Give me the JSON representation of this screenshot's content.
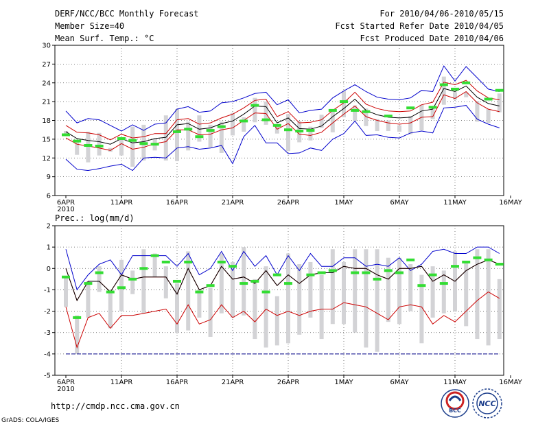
{
  "header": {
    "title": "DERF/NCC/BCC Monthly Forecast",
    "member_size": "Member Size=40",
    "variable": "Mean Surf. Temp.: °C",
    "period": "For 2010/04/06-2010/05/15",
    "started": "Fcst Started Refer Date 2010/04/05",
    "produced": "Fcst Produced Date 2010/04/06"
  },
  "footer": {
    "url": "http://cmdp.ncc.cma.gov.cn",
    "grads": "GrADS: COLA/IGES",
    "logo_bcc": "BCC",
    "logo_ncc": "NCC"
  },
  "x_labels": [
    "6APR",
    "11APR",
    "16APR",
    "21APR",
    "26APR",
    "1MAY",
    "6MAY",
    "11MAY",
    "16MAY"
  ],
  "x_year": "2010",
  "colors": {
    "max_min": "#0000cc",
    "quantile": "#cc0000",
    "mean": "#000000",
    "obs": "#33dd33",
    "box": "#d3d3d6",
    "baseline": "#000088"
  },
  "chart_data": [
    {
      "type": "line",
      "title": "Mean Surf. Temp.: °C",
      "ylim": [
        6,
        30
      ],
      "yticks": [
        6,
        9,
        12,
        15,
        18,
        21,
        24,
        27,
        30
      ],
      "ytick_labels": [
        "6",
        "9",
        "12",
        "15",
        "18",
        "21",
        "24",
        "27",
        "30"
      ],
      "x_days": 40,
      "series": [
        {
          "name": "max",
          "values": [
            19.5,
            17.6,
            18.3,
            18.1,
            17.2,
            16.3,
            17.3,
            16.4,
            17.4,
            17.6,
            19.8,
            20.2,
            19.3,
            19.5,
            20.8,
            21.0,
            21.6,
            22.3,
            22.5,
            20.5,
            21.3,
            19.2,
            19.6,
            19.8,
            21.6,
            22.7,
            23.7,
            22.6,
            21.7,
            21.4,
            21.3,
            21.6,
            22.8,
            22.6,
            26.7,
            24.3,
            26.6,
            24.8,
            23.0,
            22.6
          ]
        },
        {
          "name": "q_high",
          "values": [
            17.2,
            16.1,
            16.0,
            15.7,
            14.9,
            15.8,
            15.2,
            15.4,
            15.9,
            15.9,
            18.1,
            18.3,
            17.4,
            17.6,
            18.4,
            19.0,
            20.0,
            21.2,
            21.4,
            18.6,
            19.4,
            17.6,
            17.7,
            18.1,
            19.6,
            20.8,
            22.5,
            20.6,
            19.9,
            19.5,
            19.4,
            19.5,
            20.5,
            20.9,
            24.1,
            23.7,
            24.4,
            22.7,
            21.6,
            21.3
          ]
        },
        {
          "name": "mean",
          "values": [
            16.2,
            15.1,
            14.8,
            14.6,
            14.2,
            15.1,
            14.4,
            14.6,
            15.1,
            15.3,
            17.3,
            17.5,
            16.6,
            16.8,
            17.5,
            17.9,
            19.0,
            20.3,
            20.2,
            17.6,
            18.4,
            16.7,
            16.6,
            17.1,
            18.6,
            19.9,
            21.4,
            19.6,
            18.9,
            18.5,
            18.4,
            18.5,
            19.5,
            19.8,
            23.1,
            22.6,
            23.5,
            21.7,
            20.7,
            20.3
          ]
        },
        {
          "name": "q_low",
          "values": [
            15.2,
            14.2,
            13.9,
            13.6,
            13.2,
            14.3,
            13.4,
            13.7,
            14.3,
            14.6,
            16.5,
            16.5,
            15.7,
            15.8,
            16.5,
            16.8,
            18.0,
            19.2,
            19.1,
            16.6,
            17.5,
            15.8,
            15.6,
            16.1,
            17.6,
            19.0,
            20.3,
            18.6,
            18.0,
            17.6,
            17.4,
            17.6,
            18.5,
            18.6,
            22.1,
            21.5,
            22.6,
            20.8,
            19.8,
            19.4
          ]
        },
        {
          "name": "min",
          "values": [
            11.8,
            10.2,
            10.0,
            10.3,
            10.7,
            11.0,
            10.0,
            12.0,
            12.1,
            12.0,
            13.6,
            13.8,
            13.4,
            13.6,
            14.0,
            11.1,
            15.4,
            17.2,
            14.4,
            14.4,
            12.7,
            12.8,
            13.6,
            13.2,
            15.0,
            15.9,
            17.9,
            15.6,
            15.7,
            15.3,
            15.2,
            16.0,
            16.3,
            16.0,
            20.0,
            20.1,
            20.4,
            18.2,
            17.4,
            16.8
          ]
        },
        {
          "name": "box_high",
          "values": [
            16.3,
            14.5,
            16.2,
            16.0,
            13.6,
            15.3,
            17.0,
            17.3,
            15.0,
            18.8,
            19.8,
            17.8,
            18.8,
            17.3,
            17.8,
            19.2,
            18.5,
            21.6,
            21.0,
            17.3,
            19.0,
            17.9,
            17.0,
            18.9,
            19.4,
            22.7,
            20.4,
            19.9,
            18.2,
            18.0,
            17.2,
            18.7,
            20.5,
            20.1,
            25.0,
            22.5,
            22.5,
            21.1,
            19.8,
            22.3
          ]
        },
        {
          "name": "box_low",
          "values": [
            15.6,
            12.5,
            11.3,
            12.4,
            13.0,
            12.4,
            10.6,
            11.6,
            13.2,
            11.6,
            11.5,
            13.2,
            14.6,
            13.7,
            12.8,
            15.6,
            16.2,
            17.7,
            17.3,
            15.9,
            13.1,
            14.5,
            14.8,
            16.8,
            16.1,
            18.5,
            17.9,
            17.1,
            16.3,
            16.3,
            16.2,
            15.8,
            16.4,
            18.2,
            20.5,
            21.3,
            21.7,
            17.8,
            17.6,
            19.3
          ]
        },
        {
          "name": "obs",
          "values": [
            15.7,
            14.7,
            14.0,
            13.9,
            null,
            15.1,
            14.8,
            14.3,
            14.2,
            null,
            16.2,
            16.6,
            15.4,
            16.4,
            17.0,
            null,
            17.9,
            20.4,
            18.1,
            17.2,
            16.5,
            16.3,
            16.4,
            null,
            19.6,
            21.0,
            19.6,
            19.4,
            null,
            18.7,
            null,
            20.0,
            null,
            20.1,
            23.7,
            23.0,
            24.0,
            null,
            21.4,
            22.8
          ]
        }
      ]
    },
    {
      "type": "line",
      "title": "Prec.: log(mm/d)",
      "ylim": [
        -5,
        2
      ],
      "yticks": [
        -5,
        -4,
        -3,
        -2,
        -1,
        0,
        1,
        2
      ],
      "ytick_labels": [
        "-5",
        "-4",
        "-3",
        "-2",
        "-1",
        "0",
        "1",
        "2"
      ],
      "x_days": 40,
      "baseline": -4,
      "series": [
        {
          "name": "max",
          "values": [
            0.9,
            -1.0,
            -0.3,
            0.2,
            0.4,
            -0.3,
            0.6,
            0.6,
            0.6,
            0.6,
            0.1,
            0.7,
            -0.3,
            0.0,
            0.8,
            -0.1,
            0.8,
            0.1,
            0.6,
            -0.3,
            0.6,
            -0.1,
            0.7,
            0.1,
            0.1,
            0.5,
            0.5,
            0.1,
            0.2,
            0.1,
            0.5,
            -0.1,
            0.2,
            0.8,
            0.9,
            0.7,
            0.7,
            1.0,
            1.0,
            0.7
          ]
        },
        {
          "name": "q_high",
          "values": [
            0.0,
            -1.5,
            -0.6,
            -0.6,
            -1.1,
            -0.3,
            -0.5,
            -0.4,
            -0.4,
            -0.4,
            -1.2,
            0.0,
            -1.0,
            -0.8,
            0.1,
            -0.5,
            -0.4,
            -0.7,
            -0.1,
            -0.8,
            -0.3,
            -0.7,
            -0.3,
            -0.2,
            -0.2,
            0.1,
            0.0,
            0.0,
            -0.3,
            -0.5,
            0.0,
            0.0,
            0.1,
            -0.6,
            -0.3,
            -0.6,
            -0.1,
            0.2,
            0.4,
            0.2
          ]
        },
        {
          "name": "mean",
          "values": [
            0.0,
            -1.5,
            -0.6,
            -0.6,
            -1.1,
            -0.3,
            -0.5,
            -0.4,
            -0.4,
            -0.4,
            -1.2,
            0.0,
            -1.0,
            -0.8,
            0.1,
            -0.5,
            -0.4,
            -0.7,
            -0.1,
            -0.8,
            -0.3,
            -0.7,
            -0.3,
            -0.2,
            -0.2,
            0.1,
            0.0,
            0.0,
            -0.3,
            -0.5,
            0.0,
            0.0,
            0.1,
            -0.6,
            -0.3,
            -0.6,
            -0.1,
            0.2,
            0.4,
            0.2
          ]
        },
        {
          "name": "q_low",
          "values": [
            -1.8,
            -3.7,
            -2.3,
            -2.1,
            -2.8,
            -2.2,
            -2.2,
            -2.1,
            -2.0,
            -1.9,
            -2.6,
            -1.7,
            -2.6,
            -2.4,
            -1.7,
            -2.3,
            -2.0,
            -2.5,
            -1.9,
            -2.2,
            -2.0,
            -2.2,
            -2.0,
            -1.9,
            -1.9,
            -1.6,
            -1.7,
            -1.8,
            -2.1,
            -2.4,
            -1.8,
            -1.7,
            -1.8,
            -2.6,
            -2.2,
            -2.5,
            -2.0,
            -1.5,
            -1.1,
            -1.4
          ]
        },
        {
          "name": "box_high",
          "values": [
            -0.4,
            -2.2,
            -0.6,
            0.1,
            -1.0,
            0.4,
            -0.1,
            0.9,
            0.7,
            0.1,
            -0.7,
            0.8,
            -1.0,
            -0.9,
            0.7,
            0.3,
            1.0,
            -0.5,
            0.1,
            -1.3,
            0.7,
            0.2,
            0.3,
            -0.3,
            0.9,
            0.3,
            0.9,
            0.9,
            0.9,
            0.5,
            0.5,
            0.2,
            -0.3,
            0.1,
            -0.1,
            0.8,
            0.3,
            0.9,
            0.9,
            -0.5
          ]
        },
        {
          "name": "box_low",
          "values": [
            -1.8,
            -4.0,
            -2.3,
            -1.1,
            -2.8,
            -2.0,
            -1.2,
            -2.1,
            -0.4,
            -1.4,
            -3.0,
            -2.9,
            -2.3,
            -3.2,
            -2.1,
            -2.3,
            -2.2,
            -3.3,
            -3.7,
            -3.6,
            -3.5,
            -3.1,
            -2.3,
            -3.3,
            -2.6,
            -2.6,
            -3.0,
            -3.7,
            -3.9,
            -2.5,
            -2.6,
            -2.0,
            -3.5,
            -2.3,
            -2.1,
            -2.0,
            -2.7,
            -3.3,
            -3.6,
            -3.3
          ]
        },
        {
          "name": "obs",
          "values": [
            -0.4,
            -2.3,
            -0.7,
            -0.2,
            -1.1,
            -0.9,
            -0.5,
            0.0,
            0.6,
            0.3,
            -0.6,
            0.3,
            -1.1,
            -0.8,
            0.3,
            0.1,
            -0.7,
            -0.6,
            -1.1,
            -0.3,
            -0.7,
            null,
            -0.3,
            -0.2,
            -0.1,
            null,
            -0.2,
            -0.2,
            -0.5,
            -0.1,
            -0.2,
            0.4,
            -0.8,
            -0.3,
            -0.7,
            0.1,
            0.3,
            0.5,
            0.4,
            0.2
          ]
        }
      ]
    }
  ]
}
